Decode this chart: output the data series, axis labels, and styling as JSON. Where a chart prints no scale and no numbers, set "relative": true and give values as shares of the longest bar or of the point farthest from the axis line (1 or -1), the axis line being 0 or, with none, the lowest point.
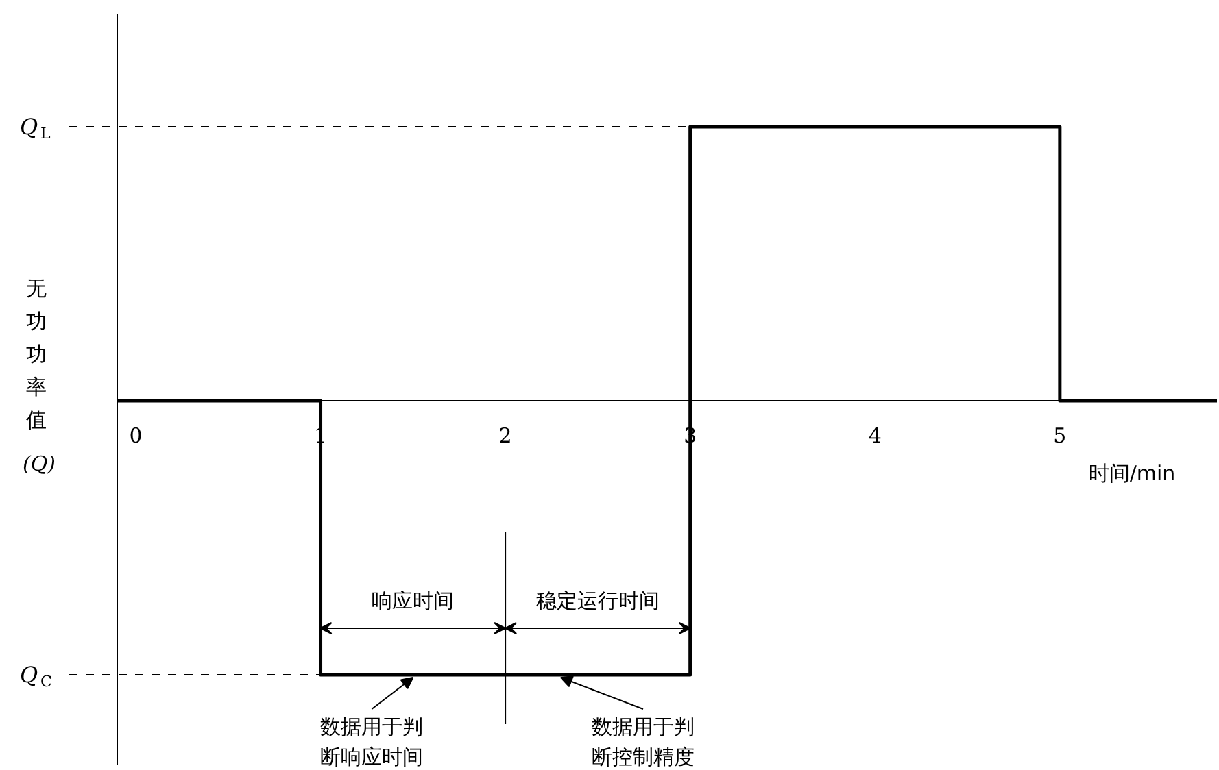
{
  "chart_data": {
    "type": "step",
    "relative": true,
    "xlabel": "时间/min",
    "ylabel": "无功功率值(Q)",
    "xlim": [
      -0.1,
      5.85
    ],
    "xticks": [
      0,
      1,
      2,
      3,
      4,
      5
    ],
    "series": [
      {
        "color": "#000000",
        "x": [
          -0.1,
          1,
          3,
          5,
          5.85
        ],
        "values": [
          0,
          -1,
          1,
          0,
          0
        ]
      }
    ],
    "ref_lines": [
      {
        "axis": "y",
        "value": 1,
        "label": "Q$_{L}$",
        "line_style": "dashed"
      },
      {
        "axis": "y",
        "value": -1,
        "label": "Q$_{C}$",
        "line_style": "dashed"
      },
      {
        "axis": "x",
        "value": 2,
        "line_style": "solid"
      }
    ],
    "annotations": [
      "响应时间",
      "稳定运行时间",
      {
        "text": "数据用于判断响应时间",
        "x": 1.5,
        "y": -1
      },
      {
        "text": "数据用于判断控制精度",
        "x": 2.3,
        "y": -1
      }
    ]
  }
}
